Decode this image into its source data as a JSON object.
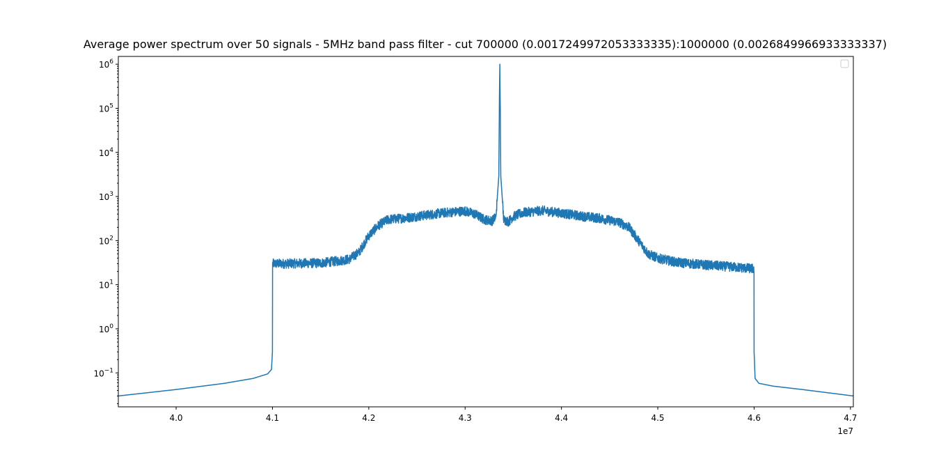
{
  "chart_data": {
    "type": "line",
    "title": "Average power spectrum over 50 signals - 5MHz band pass filter - cut 700000 (0.0017249972053333335):1000000 (0.0026849966933333337)",
    "xlabel": "",
    "ylabel": "",
    "x_offset_label": "1e7",
    "x_scale": "linear",
    "y_scale": "log",
    "xlim": [
      39400000,
      47030000
    ],
    "ylim": [
      0.017,
      1500000
    ],
    "grid": false,
    "legend": "top-right (empty)",
    "x_ticks": [
      {
        "value": 40000000,
        "label": "4.0"
      },
      {
        "value": 41000000,
        "label": "4.1"
      },
      {
        "value": 42000000,
        "label": "4.2"
      },
      {
        "value": 43000000,
        "label": "4.3"
      },
      {
        "value": 44000000,
        "label": "4.4"
      },
      {
        "value": 45000000,
        "label": "4.5"
      },
      {
        "value": 46000000,
        "label": "4.6"
      },
      {
        "value": 47000000,
        "label": "4.7"
      }
    ],
    "y_ticks": [
      {
        "value": 0.1,
        "base": "10",
        "exp": "−1"
      },
      {
        "value": 1,
        "base": "10",
        "exp": "0"
      },
      {
        "value": 10,
        "base": "10",
        "exp": "1"
      },
      {
        "value": 100,
        "base": "10",
        "exp": "2"
      },
      {
        "value": 1000,
        "base": "10",
        "exp": "3"
      },
      {
        "value": 10000,
        "base": "10",
        "exp": "4"
      },
      {
        "value": 100000,
        "base": "10",
        "exp": "5"
      },
      {
        "value": 1000000,
        "base": "10",
        "exp": "6"
      }
    ],
    "series": [
      {
        "color": "#1f77b4",
        "noise_amplitude_log10": 0.11,
        "x": [
          39400000,
          40000000,
          40500000,
          40800000,
          40950000,
          40990000,
          41000000,
          41001000,
          41100000,
          41500000,
          41700000,
          41800000,
          41900000,
          42000000,
          42100000,
          42200000,
          42400000,
          42600000,
          42800000,
          43000000,
          43100000,
          43200000,
          43280000,
          43320000,
          43350000,
          43355000,
          43360000,
          43365000,
          43370000,
          43400000,
          43450000,
          43500000,
          43600000,
          43800000,
          44000000,
          44200000,
          44400000,
          44600000,
          44700000,
          44800000,
          44900000,
          45000000,
          45200000,
          45500000,
          45800000,
          45990000,
          45999000,
          46000000,
          46010000,
          46050000,
          46200000,
          46500000,
          47030000
        ],
        "y": [
          0.03,
          0.042,
          0.058,
          0.075,
          0.095,
          0.12,
          0.3,
          30,
          30,
          31,
          35,
          38,
          55,
          130,
          220,
          300,
          330,
          380,
          430,
          470,
          400,
          300,
          280,
          350,
          3000,
          100000,
          1000000,
          100000,
          3000,
          300,
          270,
          350,
          430,
          480,
          420,
          360,
          320,
          260,
          200,
          100,
          50,
          40,
          32,
          28,
          25,
          23,
          20,
          0.3,
          0.075,
          0.058,
          0.05,
          0.042,
          0.03
        ]
      }
    ]
  }
}
